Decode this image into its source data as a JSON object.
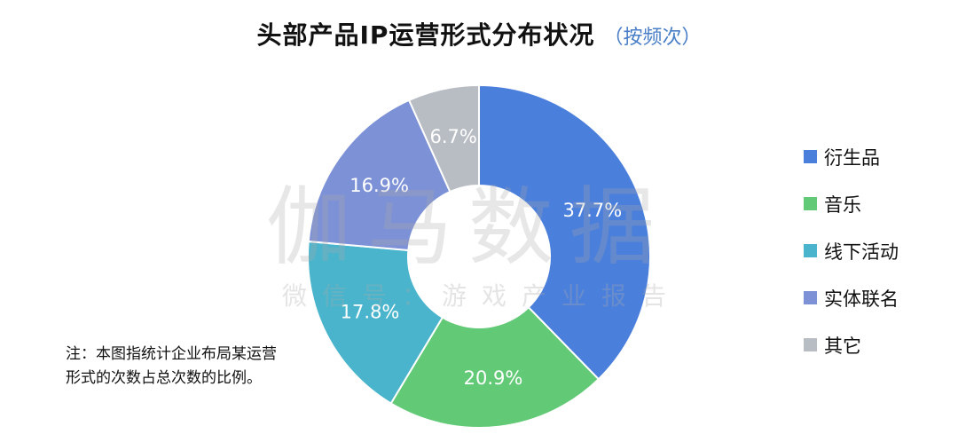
{
  "title": "头部产品IP运营形式分布状况",
  "subtitle": "（按频次）",
  "watermark": {
    "main": "伽马数据",
    "sub": "微信号：游戏产业报告"
  },
  "note": "注：本图指统计企业布局某运营形式的次数占总次数的比例。",
  "chart_data": {
    "type": "pie",
    "variant": "donut",
    "legend_position": "right",
    "categories": [
      "衍生品",
      "音乐",
      "线下活动",
      "实体联名",
      "其它"
    ],
    "values": [
      37.7,
      20.9,
      17.8,
      16.9,
      6.7
    ],
    "labels": [
      "37.7%",
      "20.9%",
      "17.8%",
      "16.9%",
      "6.7%"
    ],
    "colors": [
      "#4a7fdc",
      "#62ca76",
      "#49b4cc",
      "#7d91d6",
      "#b8bdc4"
    ],
    "label_colors": [
      "#ffffff",
      "#ffffff",
      "#ffffff",
      "#ffffff",
      "#ffffff"
    ]
  }
}
